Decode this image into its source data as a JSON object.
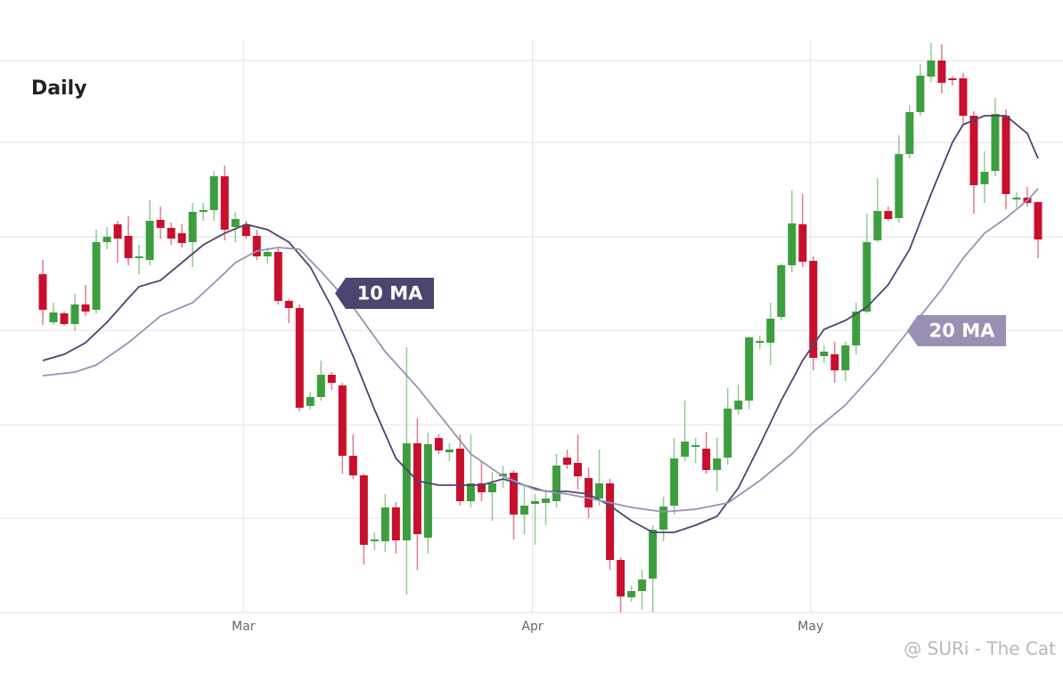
{
  "chart_data": {
    "type": "candlestick",
    "title": "Daily",
    "watermark": "@ SURi - The Cat",
    "categories": [
      null,
      null,
      null,
      null,
      null,
      null,
      null,
      null,
      null,
      null,
      null,
      null,
      null,
      null,
      null,
      null,
      null,
      null,
      null,
      "Mar",
      null,
      null,
      null,
      null,
      null,
      null,
      null,
      null,
      null,
      null,
      null,
      null,
      null,
      null,
      null,
      null,
      null,
      null,
      null,
      null,
      null,
      null,
      null,
      null,
      null,
      null,
      "Apr",
      null,
      null,
      null,
      null,
      null,
      null,
      null,
      null,
      null,
      null,
      null,
      null,
      null,
      null,
      null,
      null,
      null,
      null,
      null,
      null,
      null,
      null,
      null,
      null,
      null,
      "May",
      null,
      null,
      null,
      null,
      null,
      null,
      null,
      null,
      null,
      null,
      null,
      null,
      null,
      null,
      null,
      null,
      null,
      null,
      null,
      null,
      null
    ],
    "open": [
      380,
      326,
      336,
      324,
      346,
      340,
      416,
      436,
      423,
      398,
      396,
      441,
      432,
      426,
      416,
      450,
      452,
      490,
      433,
      435,
      423,
      400,
      405,
      350,
      342,
      232,
      242,
      267,
      255,
      176,
      154,
      80,
      80,
      118,
      81,
      190,
      84,
      196,
      180,
      184,
      125,
      145,
      135,
      153,
      157,
      110,
      122,
      123,
      125,
      174,
      168,
      151,
      128,
      145,
      59,
      17,
      24,
      38,
      93,
      120,
      175,
      186,
      184,
      160,
      174,
      228,
      238,
      303,
      303,
      332,
      390,
      436,
      395,
      288,
      290,
      272,
      300,
      338,
      418,
      451,
      443,
      515,
      562,
      602,
      620,
      600,
      600,
      558,
      481,
      496,
      558,
      464,
      466,
      461
    ],
    "high": [
      396,
      348,
      338,
      358,
      368,
      430,
      433,
      440,
      445,
      413,
      463,
      456,
      438,
      436,
      460,
      460,
      496,
      502,
      450,
      440,
      430,
      410,
      410,
      352,
      346,
      248,
      283,
      270,
      258,
      200,
      156,
      90,
      133,
      124,
      298,
      218,
      202,
      200,
      190,
      200,
      200,
      170,
      158,
      165,
      160,
      143,
      133,
      138,
      178,
      183,
      200,
      163,
      183,
      150,
      62,
      30,
      48,
      98,
      130,
      196,
      238,
      196,
      203,
      196,
      252,
      256,
      310,
      311,
      348,
      392,
      474,
      470,
      400,
      300,
      304,
      304,
      348,
      448,
      488,
      456,
      536,
      570,
      616,
      640,
      638,
      602,
      606,
      563,
      518,
      578,
      565,
      472,
      478,
      462
    ],
    "low": [
      323,
      323,
      322,
      316,
      333,
      336,
      408,
      393,
      390,
      380,
      390,
      420,
      413,
      410,
      388,
      440,
      440,
      418,
      416,
      420,
      396,
      392,
      346,
      325,
      226,
      228,
      238,
      250,
      156,
      150,
      54,
      70,
      68,
      66,
      20,
      48,
      66,
      178,
      170,
      120,
      118,
      125,
      103,
      140,
      82,
      88,
      76,
      98,
      118,
      161,
      138,
      106,
      120,
      48,
      0,
      12,
      3,
      0,
      80,
      110,
      170,
      168,
      156,
      136,
      166,
      222,
      228,
      296,
      278,
      328,
      382,
      388,
      272,
      280,
      258,
      260,
      290,
      336,
      416,
      440,
      438,
      510,
      558,
      596,
      583,
      592,
      548,
      448,
      460,
      490,
      453,
      455,
      456,
      398
    ],
    "close": [
      340,
      337,
      324,
      346,
      338,
      416,
      422,
      420,
      398,
      400,
      440,
      432,
      420,
      415,
      450,
      452,
      490,
      430,
      442,
      423,
      400,
      405,
      350,
      342,
      230,
      242,
      267,
      258,
      176,
      154,
      76,
      82,
      118,
      81,
      190,
      88,
      189,
      182,
      183,
      125,
      145,
      135,
      145,
      156,
      110,
      120,
      125,
      128,
      165,
      166,
      153,
      118,
      145,
      59,
      18,
      24,
      37,
      93,
      119,
      173,
      192,
      188,
      160,
      173,
      229,
      238,
      309,
      305,
      330,
      390,
      437,
      394,
      286,
      293,
      272,
      300,
      338,
      416,
      451,
      442,
      515,
      562,
      603,
      620,
      595,
      598,
      558,
      480,
      495,
      560,
      470,
      466,
      460,
      419
    ],
    "up_color": "#3d9e3f",
    "down_color": "#c8102e",
    "lines": [
      {
        "name": "10 MA",
        "color": "#4e4470",
        "x": [
          0,
          2,
          4,
          6,
          8,
          9,
          11,
          13,
          15,
          17,
          19,
          21,
          23,
          25,
          27,
          29,
          31,
          33,
          35,
          37,
          39,
          41,
          43,
          45,
          47,
          49,
          51,
          53,
          55,
          57,
          59,
          61,
          63,
          65,
          67,
          69,
          71,
          73,
          75,
          77,
          79,
          81,
          83,
          85,
          86,
          88,
          90,
          92,
          93
        ],
        "values": [
          283,
          290,
          303,
          326,
          353,
          366,
          373,
          393,
          413,
          426,
          436,
          430,
          416,
          388,
          343,
          288,
          228,
          173,
          148,
          143,
          143,
          143,
          150,
          143,
          136,
          136,
          133,
          120,
          103,
          90,
          90,
          98,
          108,
          140,
          188,
          238,
          283,
          318,
          328,
          343,
          368,
          408,
          470,
          528,
          548,
          558,
          558,
          538,
          510
        ]
      },
      {
        "name": "20 MA",
        "color": "#9a90b4",
        "x": [
          0,
          3,
          5,
          8,
          11,
          14,
          16,
          18,
          20,
          22,
          24,
          26,
          29,
          32,
          35,
          38,
          40,
          43,
          46,
          49,
          52,
          55,
          58,
          61,
          64,
          67,
          70,
          72,
          75,
          78,
          81,
          84,
          86,
          88,
          90,
          92,
          93
        ],
        "values": [
          266,
          270,
          278,
          303,
          333,
          348,
          370,
          393,
          406,
          410,
          408,
          383,
          343,
          293,
          253,
          208,
          178,
          153,
          138,
          133,
          126,
          118,
          113,
          116,
          123,
          148,
          178,
          203,
          233,
          273,
          318,
          363,
          398,
          426,
          443,
          463,
          476
        ]
      }
    ],
    "ylim": [
      0,
      643
    ],
    "yticks": [
      0,
      106,
      211,
      317,
      422,
      528,
      620
    ],
    "grid": true
  }
}
